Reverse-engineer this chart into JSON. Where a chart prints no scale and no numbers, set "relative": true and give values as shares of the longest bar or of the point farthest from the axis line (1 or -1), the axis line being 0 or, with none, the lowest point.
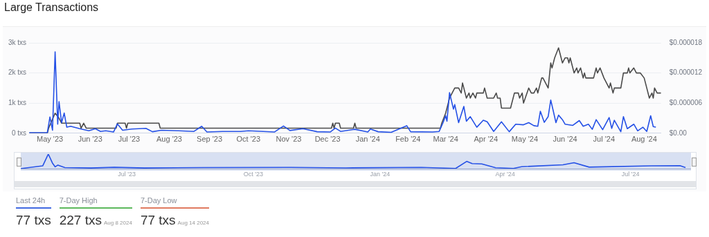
{
  "chart_data": [
    {
      "type": "line",
      "title": "Large Transactions",
      "xlim": [
        "2023-04-15",
        "2024-08-14"
      ],
      "xticks": [
        {
          "value": "2023-05-01",
          "label": "May '23"
        },
        {
          "value": "2023-06-01",
          "label": "Jun '23"
        },
        {
          "value": "2023-07-01",
          "label": "Jul '23"
        },
        {
          "value": "2023-08-01",
          "label": "Aug '23"
        },
        {
          "value": "2023-09-01",
          "label": "Sep '23"
        },
        {
          "value": "2023-10-01",
          "label": "Oct '23"
        },
        {
          "value": "2023-11-01",
          "label": "Nov '23"
        },
        {
          "value": "2023-12-01",
          "label": "Dec '23"
        },
        {
          "value": "2024-01-01",
          "label": "Jan '24"
        },
        {
          "value": "2024-02-01",
          "label": "Feb '24"
        },
        {
          "value": "2024-03-01",
          "label": "Mar '24"
        },
        {
          "value": "2024-04-01",
          "label": "Apr '24"
        },
        {
          "value": "2024-05-01",
          "label": "May '24"
        },
        {
          "value": "2024-06-01",
          "label": "Jun '24"
        },
        {
          "value": "2024-07-01",
          "label": "Jul '24"
        },
        {
          "value": "2024-08-01",
          "label": "Aug '24"
        }
      ],
      "ylim": [
        0,
        3000
      ],
      "yticks": [
        {
          "value": 0,
          "label": "0 txs"
        },
        {
          "value": 1000,
          "label": "1k txs"
        },
        {
          "value": 2000,
          "label": "2k txs"
        },
        {
          "value": 3000,
          "label": "3k txs"
        }
      ],
      "y2lim": [
        0,
        1.8e-05
      ],
      "y2ticks": [
        {
          "value": 0,
          "label": "$0.00"
        },
        {
          "value": 6e-06,
          "label": "$0.000006"
        },
        {
          "value": 1.2e-05,
          "label": "$0.000012"
        },
        {
          "value": 1.8e-05,
          "label": "$0.000018"
        }
      ],
      "grid": "y",
      "marker": "none",
      "line_style": "solid",
      "series": [
        {
          "color": "#2450e6",
          "x": [
            "2023-04-15",
            "2023-04-29",
            "2023-05-01",
            "2023-05-03",
            "2023-05-05",
            "2023-05-07",
            "2023-05-08",
            "2023-05-10",
            "2023-05-12",
            "2023-05-14",
            "2023-05-17",
            "2023-05-24",
            "2023-05-31",
            "2023-06-05",
            "2023-06-09",
            "2023-06-13",
            "2023-06-19",
            "2023-06-22",
            "2023-06-26",
            "2023-07-03",
            "2023-07-14",
            "2023-07-19",
            "2023-07-26",
            "2023-08-08",
            "2023-08-20",
            "2023-08-26",
            "2023-08-30",
            "2023-09-11",
            "2023-09-25",
            "2023-10-01",
            "2023-10-21",
            "2023-10-28",
            "2023-11-02",
            "2023-11-12",
            "2023-11-23",
            "2023-12-03",
            "2023-12-07",
            "2023-12-11",
            "2023-12-22",
            "2024-01-01",
            "2024-01-03",
            "2024-01-09",
            "2024-01-19",
            "2024-01-31",
            "2024-02-03",
            "2024-02-20",
            "2024-02-25",
            "2024-02-28",
            "2024-03-01",
            "2024-03-02",
            "2024-03-04",
            "2024-03-07",
            "2024-03-08",
            "2024-03-11",
            "2024-03-15",
            "2024-03-17",
            "2024-03-20",
            "2024-03-25",
            "2024-03-30",
            "2024-04-02",
            "2024-04-07",
            "2024-04-13",
            "2024-04-19",
            "2024-04-24",
            "2024-04-30",
            "2024-05-04",
            "2024-05-08",
            "2024-05-11",
            "2024-05-13",
            "2024-05-16",
            "2024-05-19",
            "2024-05-21",
            "2024-05-23",
            "2024-05-25",
            "2024-05-27",
            "2024-05-30",
            "2024-06-01",
            "2024-06-07",
            "2024-06-12",
            "2024-06-15",
            "2024-06-19",
            "2024-06-22",
            "2024-06-25",
            "2024-06-30",
            "2024-07-05",
            "2024-07-07",
            "2024-07-09",
            "2024-07-14",
            "2024-07-16",
            "2024-07-19",
            "2024-07-24",
            "2024-07-27",
            "2024-07-31",
            "2024-08-03",
            "2024-08-06",
            "2024-08-08",
            "2024-08-10"
          ],
          "values": [
            20,
            20,
            540,
            100,
            2700,
            300,
            1050,
            350,
            670,
            200,
            230,
            150,
            80,
            150,
            60,
            80,
            40,
            310,
            100,
            140,
            160,
            50,
            100,
            80,
            60,
            230,
            40,
            60,
            60,
            80,
            40,
            240,
            90,
            150,
            50,
            40,
            170,
            60,
            130,
            40,
            140,
            50,
            30,
            250,
            50,
            40,
            60,
            350,
            580,
            400,
            1350,
            800,
            950,
            350,
            890,
            400,
            550,
            200,
            430,
            380,
            60,
            380,
            50,
            300,
            280,
            350,
            250,
            230,
            730,
            360,
            550,
            1100,
            730,
            350,
            600,
            450,
            300,
            260,
            420,
            230,
            300,
            130,
            450,
            120,
            520,
            160,
            430,
            50,
            550,
            150,
            300,
            80,
            200,
            60,
            580,
            220,
            200
          ]
        },
        {
          "color": "#4a4a4a",
          "axis": "y2",
          "x": [
            "2023-04-15",
            "2023-04-29",
            "2023-04-30",
            "2023-05-05",
            "2023-05-08",
            "2023-05-10",
            "2023-05-14",
            "2023-05-24",
            "2023-05-25",
            "2023-05-27",
            "2023-05-29",
            "2023-06-21",
            "2023-06-22",
            "2023-06-28",
            "2023-06-29",
            "2023-06-30",
            "2023-07-24",
            "2023-07-25",
            "2023-12-04",
            "2023-12-05",
            "2023-12-06",
            "2023-12-07",
            "2023-12-10",
            "2023-12-11",
            "2023-12-21",
            "2023-12-22",
            "2023-12-23",
            "2024-02-26",
            "2024-02-27",
            "2024-03-01",
            "2024-03-04",
            "2024-03-08",
            "2024-03-11",
            "2024-03-13",
            "2024-03-14",
            "2024-03-17",
            "2024-03-19",
            "2024-03-20",
            "2024-03-22",
            "2024-03-24",
            "2024-03-25",
            "2024-03-30",
            "2024-03-31",
            "2024-04-02",
            "2024-04-07",
            "2024-04-09",
            "2024-04-10",
            "2024-04-12",
            "2024-04-13",
            "2024-04-20",
            "2024-04-21",
            "2024-04-23",
            "2024-04-26",
            "2024-04-27",
            "2024-04-29",
            "2024-04-30",
            "2024-05-04",
            "2024-05-06",
            "2024-05-08",
            "2024-05-10",
            "2024-05-11",
            "2024-05-14",
            "2024-05-15",
            "2024-05-19",
            "2024-05-21",
            "2024-05-22",
            "2024-05-24",
            "2024-05-27",
            "2024-05-30",
            "2024-06-01",
            "2024-06-03",
            "2024-06-04",
            "2024-06-05",
            "2024-06-08",
            "2024-06-10",
            "2024-06-11",
            "2024-06-13",
            "2024-06-15",
            "2024-06-16",
            "2024-06-17",
            "2024-06-23",
            "2024-06-25",
            "2024-06-26",
            "2024-06-28",
            "2024-07-01",
            "2024-07-03",
            "2024-07-05",
            "2024-07-06",
            "2024-07-08",
            "2024-07-09",
            "2024-07-14",
            "2024-07-16",
            "2024-07-19",
            "2024-07-20",
            "2024-07-21",
            "2024-07-24",
            "2024-07-26",
            "2024-07-29",
            "2024-08-01",
            "2024-08-03",
            "2024-08-05",
            "2024-08-07",
            "2024-08-08",
            "2024-08-09",
            "2024-08-11",
            "2024-08-14"
          ],
          "values": [
            0,
            0,
            1e-06,
            4e-06,
            3e-06,
            2e-06,
            2e-06,
            2e-06,
            1e-06,
            2e-06,
            1e-06,
            1e-06,
            2e-06,
            2e-06,
            1e-06,
            2e-06,
            2e-06,
            1e-06,
            1e-06,
            2e-06,
            1e-06,
            2e-06,
            2e-06,
            1e-06,
            1e-06,
            2e-06,
            1e-06,
            1e-06,
            2e-06,
            4e-06,
            7e-06,
            9e-06,
            9e-06,
            8e-06,
            1e-05,
            7e-06,
            8e-06,
            7e-06,
            8e-06,
            7e-06,
            8e-06,
            8e-06,
            9e-06,
            7e-06,
            7e-06,
            8e-06,
            7e-06,
            7e-06,
            5e-06,
            5e-06,
            6e-06,
            8e-06,
            8e-06,
            7e-06,
            8e-06,
            6e-06,
            9e-06,
            8e-06,
            8e-06,
            9e-06,
            8e-06,
            1.1e-05,
            1.1e-05,
            9e-06,
            1.4e-05,
            1.3e-05,
            1.5e-05,
            1.7e-05,
            1.4e-05,
            1.5e-05,
            1.5e-05,
            1.4e-05,
            1.5e-05,
            1.2e-05,
            1.3e-05,
            1.2e-05,
            1.3e-05,
            1.1e-05,
            1.2e-05,
            1.1e-05,
            1.1e-05,
            1.3e-05,
            1.2e-05,
            1.3e-05,
            1.1e-05,
            1e-05,
            9e-06,
            1e-05,
            8e-06,
            9e-06,
            9e-06,
            1.2e-05,
            1.2e-05,
            1.3e-05,
            1.2e-05,
            1.3e-05,
            1.2e-05,
            1.2e-05,
            1.1e-05,
            9e-06,
            7e-06,
            8e-06,
            7e-06,
            9e-06,
            8e-06,
            8e-06
          ]
        }
      ]
    },
    {
      "type": "line",
      "relative": true,
      "marker": "none",
      "xlim": [
        "2023-04-15",
        "2024-08-14"
      ],
      "xticks": [
        {
          "value": "2023-07-01",
          "label": "Jul '23"
        },
        {
          "value": "2023-10-01",
          "label": "Oct '23"
        },
        {
          "value": "2024-01-01",
          "label": "Jan '24"
        },
        {
          "value": "2024-04-01",
          "label": "Apr '24"
        },
        {
          "value": "2024-07-01",
          "label": "Jul '24"
        }
      ],
      "series": [
        {
          "color": "#2450e6",
          "x": [
            "2023-04-15",
            "2023-05-01",
            "2023-05-05",
            "2023-05-08",
            "2023-05-10",
            "2023-05-12",
            "2023-05-17",
            "2023-06-05",
            "2023-06-22",
            "2023-07-14",
            "2023-08-26",
            "2023-10-28",
            "2023-12-07",
            "2024-01-31",
            "2024-02-25",
            "2024-03-04",
            "2024-03-08",
            "2024-03-15",
            "2024-03-25",
            "2024-04-07",
            "2024-04-13",
            "2024-05-13",
            "2024-05-21",
            "2024-06-01",
            "2024-07-16",
            "2024-08-06",
            "2024-08-10"
          ],
          "values": [
            0.01,
            0.2,
            1,
            0.39,
            0.13,
            0.25,
            0.08,
            0.05,
            0.1,
            0.05,
            0.08,
            0.09,
            0.06,
            0.09,
            0.02,
            0.5,
            0.35,
            0.33,
            0.07,
            0.02,
            0.14,
            0.27,
            0.41,
            0.11,
            0.2,
            0.21,
            0.08
          ]
        }
      ]
    },
    {
      "type": "other",
      "categories": [
        "Last 24h",
        "7-Day High",
        "7-Day Low"
      ],
      "value_labels": [
        "77 txs",
        "227 txs",
        "77 txs"
      ],
      "annotations": [
        "Aug 8 2024",
        "Aug 14 2024"
      ],
      "colors": [
        "#4169e1",
        "#5cb85c",
        "#e07a5f"
      ]
    }
  ]
}
